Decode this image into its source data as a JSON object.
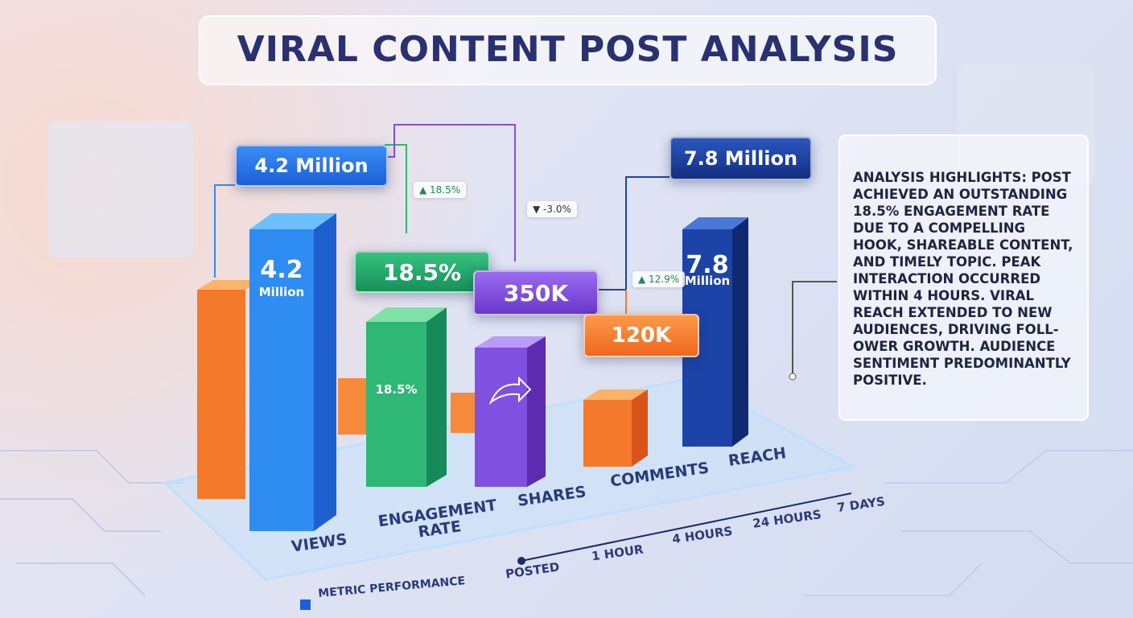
{
  "header": {
    "title": "VIRAL CONTENT POST ANALYSIS"
  },
  "metrics": [
    {
      "label": "VIEWS",
      "callout": "4.2 Million",
      "bar_value": "4.2",
      "bar_unit": "Million"
    },
    {
      "label": "ENGAGEMENT RATE",
      "callout": "18.5%",
      "bar_value": "18.5%",
      "change": "▲ 18.5%"
    },
    {
      "label": "SHARES",
      "callout": "350K",
      "change": "▼ -3.0%"
    },
    {
      "label": "COMMENTS",
      "callout": "120K",
      "change": "▲ 12.9%"
    },
    {
      "label": "REACH",
      "callout": "7.8 Million",
      "bar_value": "7.8",
      "bar_unit": "Million"
    }
  ],
  "timeline": [
    "POSTED",
    "1 HOUR",
    "4 HOURS",
    "24 HOURS",
    "7 DAYS"
  ],
  "legend": "METRIC PERFORMANCE",
  "highlights": "ANALYSIS HIGHLIGHTS: POST ACHIEVED AN OUTSTANDING 18.5% ENGAGEMENT RATE DUE TO A COMPELLING HOOK, SHAREABLE CONTENT, AND TIMELY TOPIC. PEAK INTERACTION OCCURRED WITHIN 4 HOURS. VIRAL REACH EXTENDED TO NEW AUDIENCES, DRIVING FOLL-OWER GROWTH. AUDIENCE SENTIMENT PREDOMINANTLY POSITIVE."
}
